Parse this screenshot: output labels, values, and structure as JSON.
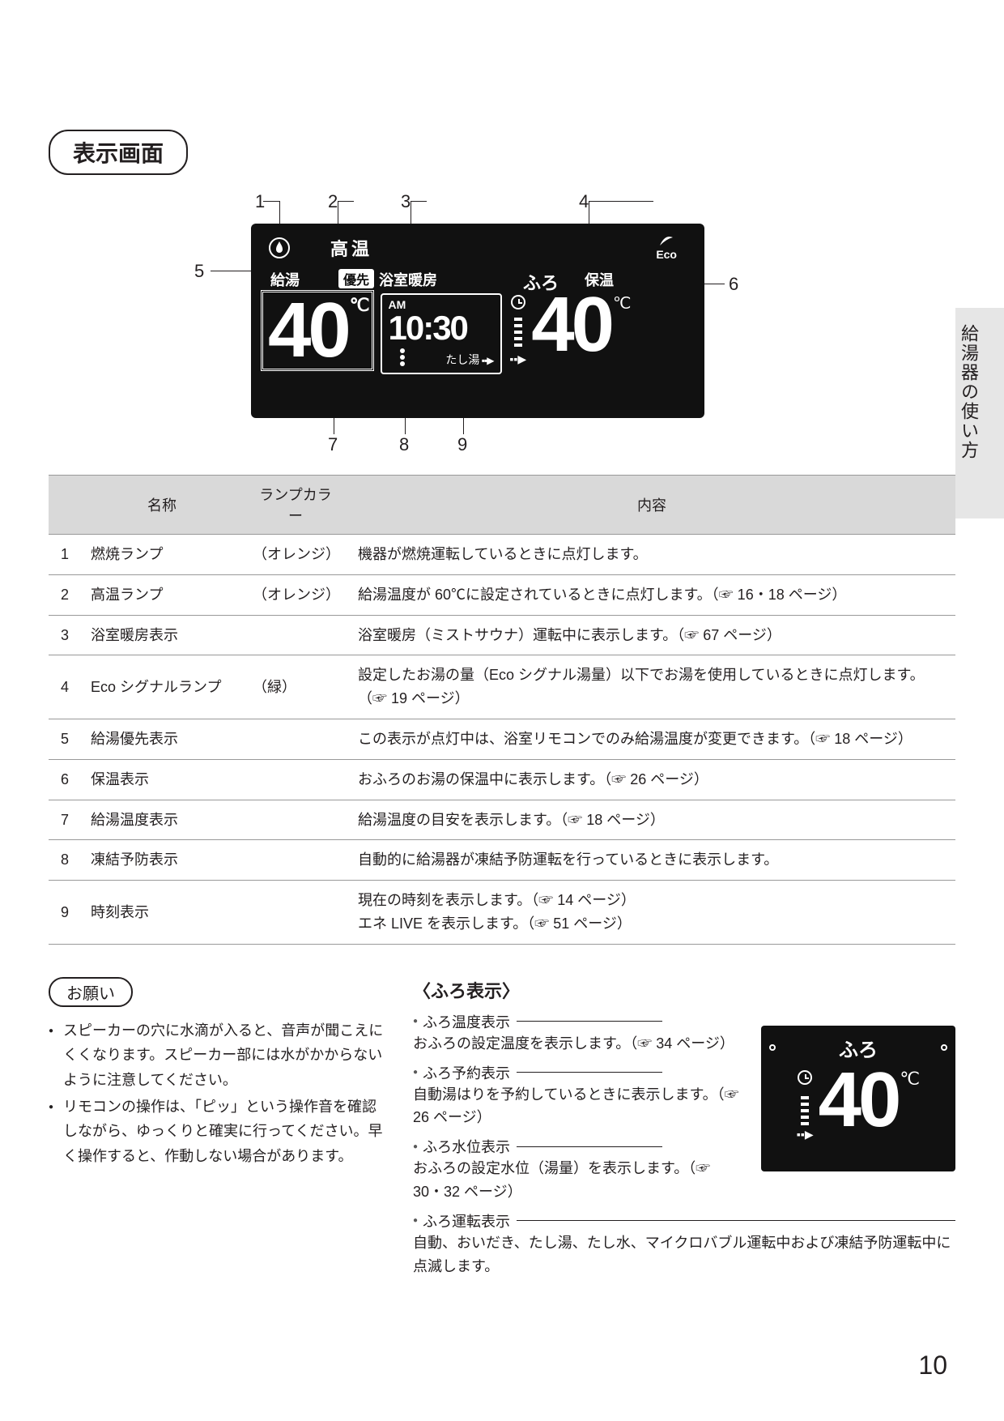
{
  "side_tab": "給湯器の使い方",
  "section_title": "表示画面",
  "page_number": "10",
  "display": {
    "hot_label": "高温",
    "eco_label": "Eco",
    "supply_label": "給湯",
    "priority_label": "優先",
    "heat_label": "浴室暖房",
    "bath_label": "ふろ",
    "keep_label": "保温",
    "supply_temp": "40",
    "bath_temp": "40",
    "ampm": "AM",
    "clock": "10:30",
    "tashiyu": "たし湯",
    "deg": "℃"
  },
  "callouts": [
    "1",
    "2",
    "3",
    "4",
    "5",
    "6",
    "7",
    "8",
    "9"
  ],
  "table": {
    "headers": {
      "num": "",
      "name": "名称",
      "color": "ランプカラー",
      "content": "内容"
    },
    "rows": [
      {
        "num": "1",
        "name": "燃焼ランプ",
        "color": "（オレンジ）",
        "content": "機器が燃焼運転しているときに点灯します。"
      },
      {
        "num": "2",
        "name": "高温ランプ",
        "color": "（オレンジ）",
        "content": "給湯温度が 60℃に設定されているときに点灯します。（☞ 16・18 ページ）"
      },
      {
        "num": "3",
        "name": "浴室暖房表示",
        "color": "",
        "content": "浴室暖房（ミストサウナ）運転中に表示します。（☞ 67 ページ）"
      },
      {
        "num": "4",
        "name": "Eco シグナルランプ",
        "color": "（緑）",
        "content": "設定したお湯の量（Eco シグナル湯量）以下でお湯を使用しているときに点灯します。（☞ 19 ページ）"
      },
      {
        "num": "5",
        "name": "給湯優先表示",
        "color": "",
        "content": "この表示が点灯中は、浴室リモコンでのみ給湯温度が変更できます。（☞ 18 ページ）"
      },
      {
        "num": "6",
        "name": "保温表示",
        "color": "",
        "content": "おふろのお湯の保温中に表示します。（☞ 26 ページ）"
      },
      {
        "num": "7",
        "name": "給湯温度表示",
        "color": "",
        "content": "給湯温度の目安を表示します。（☞ 18 ページ）"
      },
      {
        "num": "8",
        "name": "凍結予防表示",
        "color": "",
        "content": "自動的に給湯器が凍結予防運転を行っているときに表示します。"
      },
      {
        "num": "9",
        "name": "時刻表示",
        "color": "",
        "content": "現在の時刻を表示します。（☞ 14 ページ）\nエネ LIVE を表示します。（☞ 51 ページ）"
      }
    ]
  },
  "onegai": {
    "title": "お願い",
    "items": [
      "スピーカーの穴に水滴が入ると、音声が聞こえにくくなります。スピーカー部には水がかからないように注意してください。",
      "リモコンの操作は、「ピッ」という操作音を確認しながら、ゆっくりと確実に行ってください。早く操作すると、作動しない場合があります。"
    ]
  },
  "furo": {
    "title": "〈ふろ表示〉",
    "items": [
      {
        "label": "ふろ温度表示",
        "desc": "おふろの設定温度を表示します。（☞ 34 ページ）"
      },
      {
        "label": "ふろ予約表示",
        "desc": "自動湯はりを予約しているときに表示します。（☞ 26 ページ）"
      },
      {
        "label": "ふろ水位表示",
        "desc": "おふろの設定水位（湯量）を表示します。（☞ 30・32 ページ）"
      },
      {
        "label": "ふろ運転表示",
        "desc": "自動、おいだき、たし湯、たし水、マイクロバブル運転中および凍結予防運転中に点滅します。"
      }
    ],
    "mini_display": {
      "label": "ふろ",
      "temp": "40",
      "deg": "℃"
    }
  }
}
